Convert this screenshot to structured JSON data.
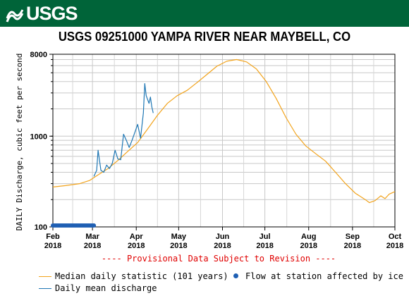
{
  "banner": {
    "logo_text": "USGS"
  },
  "chart_data": {
    "type": "line",
    "title": "USGS 09251000 YAMPA RIVER NEAR MAYBELL, CO",
    "ylabel": "DAILY Discharge, cubic feet per second",
    "y_scale": "log",
    "ylim": [
      100,
      8000
    ],
    "y_ticks": [
      "100",
      "1000",
      "8000"
    ],
    "xlim": [
      "2018-02-01",
      "2018-10-01"
    ],
    "x_ticks": [
      {
        "month": "Feb",
        "year": "2018",
        "date": "2018-02-01"
      },
      {
        "month": "Mar",
        "year": "2018",
        "date": "2018-03-01"
      },
      {
        "month": "Apr",
        "year": "2018",
        "date": "2018-04-01"
      },
      {
        "month": "May",
        "year": "2018",
        "date": "2018-05-01"
      },
      {
        "month": "Jun",
        "year": "2018",
        "date": "2018-06-01"
      },
      {
        "month": "Jul",
        "year": "2018",
        "date": "2018-07-01"
      },
      {
        "month": "Aug",
        "year": "2018",
        "date": "2018-08-01"
      },
      {
        "month": "Sep",
        "year": "2018",
        "date": "2018-09-01"
      },
      {
        "month": "Oct",
        "year": "2018",
        "date": "2018-10-01"
      }
    ],
    "annotation": "---- Provisional Data Subject to Revision ----",
    "grid": true,
    "series": [
      {
        "name": "Median daily statistic (101 years)",
        "color": "#f2a31b",
        "points": [
          [
            "2018-02-01",
            275
          ],
          [
            "2018-02-10",
            285
          ],
          [
            "2018-02-20",
            300
          ],
          [
            "2018-02-27",
            325
          ],
          [
            "2018-03-05",
            375
          ],
          [
            "2018-03-12",
            440
          ],
          [
            "2018-03-19",
            540
          ],
          [
            "2018-03-26",
            680
          ],
          [
            "2018-04-02",
            850
          ],
          [
            "2018-04-09",
            1200
          ],
          [
            "2018-04-16",
            1700
          ],
          [
            "2018-04-23",
            2300
          ],
          [
            "2018-04-30",
            2800
          ],
          [
            "2018-05-07",
            3200
          ],
          [
            "2018-05-14",
            3900
          ],
          [
            "2018-05-21",
            4800
          ],
          [
            "2018-05-28",
            5900
          ],
          [
            "2018-06-04",
            6700
          ],
          [
            "2018-06-11",
            7000
          ],
          [
            "2018-06-18",
            6600
          ],
          [
            "2018-06-25",
            5500
          ],
          [
            "2018-07-02",
            4000
          ],
          [
            "2018-07-09",
            2600
          ],
          [
            "2018-07-16",
            1600
          ],
          [
            "2018-07-23",
            1050
          ],
          [
            "2018-07-30",
            780
          ],
          [
            "2018-08-06",
            640
          ],
          [
            "2018-08-13",
            530
          ],
          [
            "2018-08-20",
            400
          ],
          [
            "2018-08-27",
            300
          ],
          [
            "2018-09-03",
            235
          ],
          [
            "2018-09-10",
            200
          ],
          [
            "2018-09-13",
            185
          ],
          [
            "2018-09-17",
            195
          ],
          [
            "2018-09-21",
            220
          ],
          [
            "2018-09-24",
            205
          ],
          [
            "2018-09-27",
            230
          ],
          [
            "2018-10-01",
            245
          ]
        ]
      },
      {
        "name": "Daily mean discharge",
        "color": "#1f77b4",
        "points": [
          [
            "2018-03-02",
            360
          ],
          [
            "2018-03-04",
            420
          ],
          [
            "2018-03-05",
            700
          ],
          [
            "2018-03-07",
            420
          ],
          [
            "2018-03-09",
            400
          ],
          [
            "2018-03-11",
            480
          ],
          [
            "2018-03-13",
            440
          ],
          [
            "2018-03-15",
            500
          ],
          [
            "2018-03-17",
            700
          ],
          [
            "2018-03-19",
            560
          ],
          [
            "2018-03-21",
            550
          ],
          [
            "2018-03-23",
            1050
          ],
          [
            "2018-03-25",
            900
          ],
          [
            "2018-03-27",
            750
          ],
          [
            "2018-03-29",
            900
          ],
          [
            "2018-03-31",
            1100
          ],
          [
            "2018-04-02",
            1350
          ],
          [
            "2018-04-04",
            950
          ],
          [
            "2018-04-06",
            1800
          ],
          [
            "2018-04-07",
            3800
          ],
          [
            "2018-04-08",
            2800
          ],
          [
            "2018-04-10",
            2300
          ],
          [
            "2018-04-11",
            2700
          ],
          [
            "2018-04-12",
            2100
          ],
          [
            "2018-04-13",
            1800
          ]
        ]
      },
      {
        "name": "Flow at station affected by ice",
        "color": "#1f5fb3",
        "type": "points",
        "y": 100,
        "x_start": "2018-02-01",
        "x_end": "2018-03-02"
      }
    ]
  }
}
